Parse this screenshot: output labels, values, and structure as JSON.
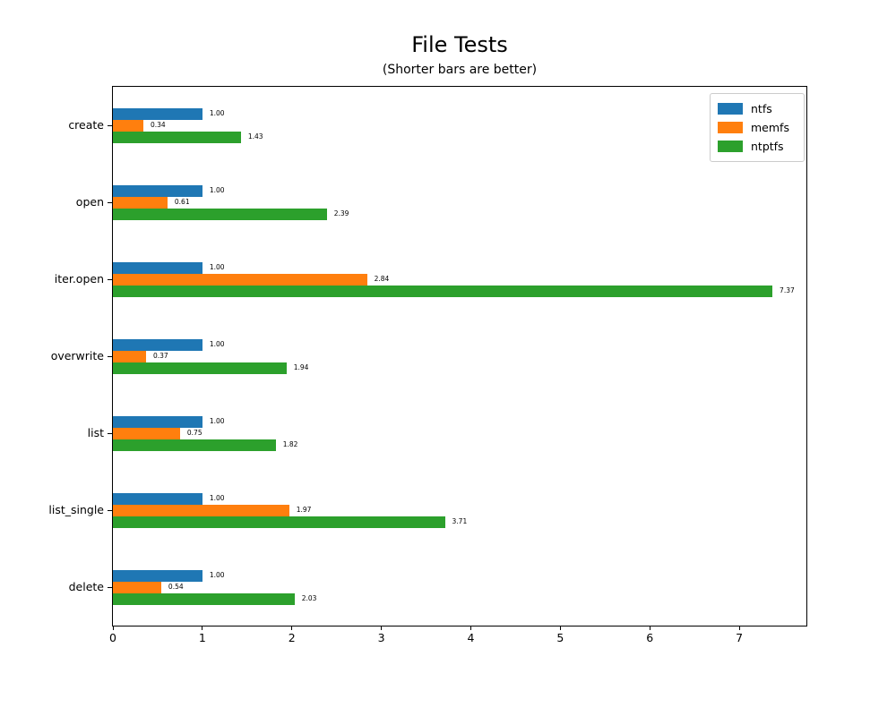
{
  "title": "File Tests",
  "subtitle": "(Shorter bars are better)",
  "chart_data": {
    "type": "bar",
    "orientation": "horizontal",
    "title": "File Tests",
    "subtitle": "(Shorter bars are better)",
    "categories": [
      "create",
      "open",
      "iter.open",
      "overwrite",
      "list",
      "list_single",
      "delete"
    ],
    "series": [
      {
        "name": "ntfs",
        "color": "#1f77b4",
        "values": [
          1.0,
          1.0,
          1.0,
          1.0,
          1.0,
          1.0,
          1.0
        ]
      },
      {
        "name": "memfs",
        "color": "#ff7f0e",
        "values": [
          0.34,
          0.61,
          2.84,
          0.37,
          0.75,
          1.97,
          0.54
        ]
      },
      {
        "name": "ntptfs",
        "color": "#2ca02c",
        "values": [
          1.43,
          2.39,
          7.37,
          1.94,
          1.82,
          3.71,
          2.03
        ]
      }
    ],
    "xlim": [
      0,
      7.75
    ],
    "x_ticks": [
      "0",
      "1",
      "2",
      "3",
      "4",
      "5",
      "6",
      "7"
    ],
    "xlabel": "",
    "ylabel": "",
    "bar_value_labels": true,
    "value_label_format": "2-decimals",
    "grid": false,
    "legend_position": "upper right",
    "legend_entries": [
      "ntfs",
      "memfs",
      "ntptfs"
    ]
  }
}
